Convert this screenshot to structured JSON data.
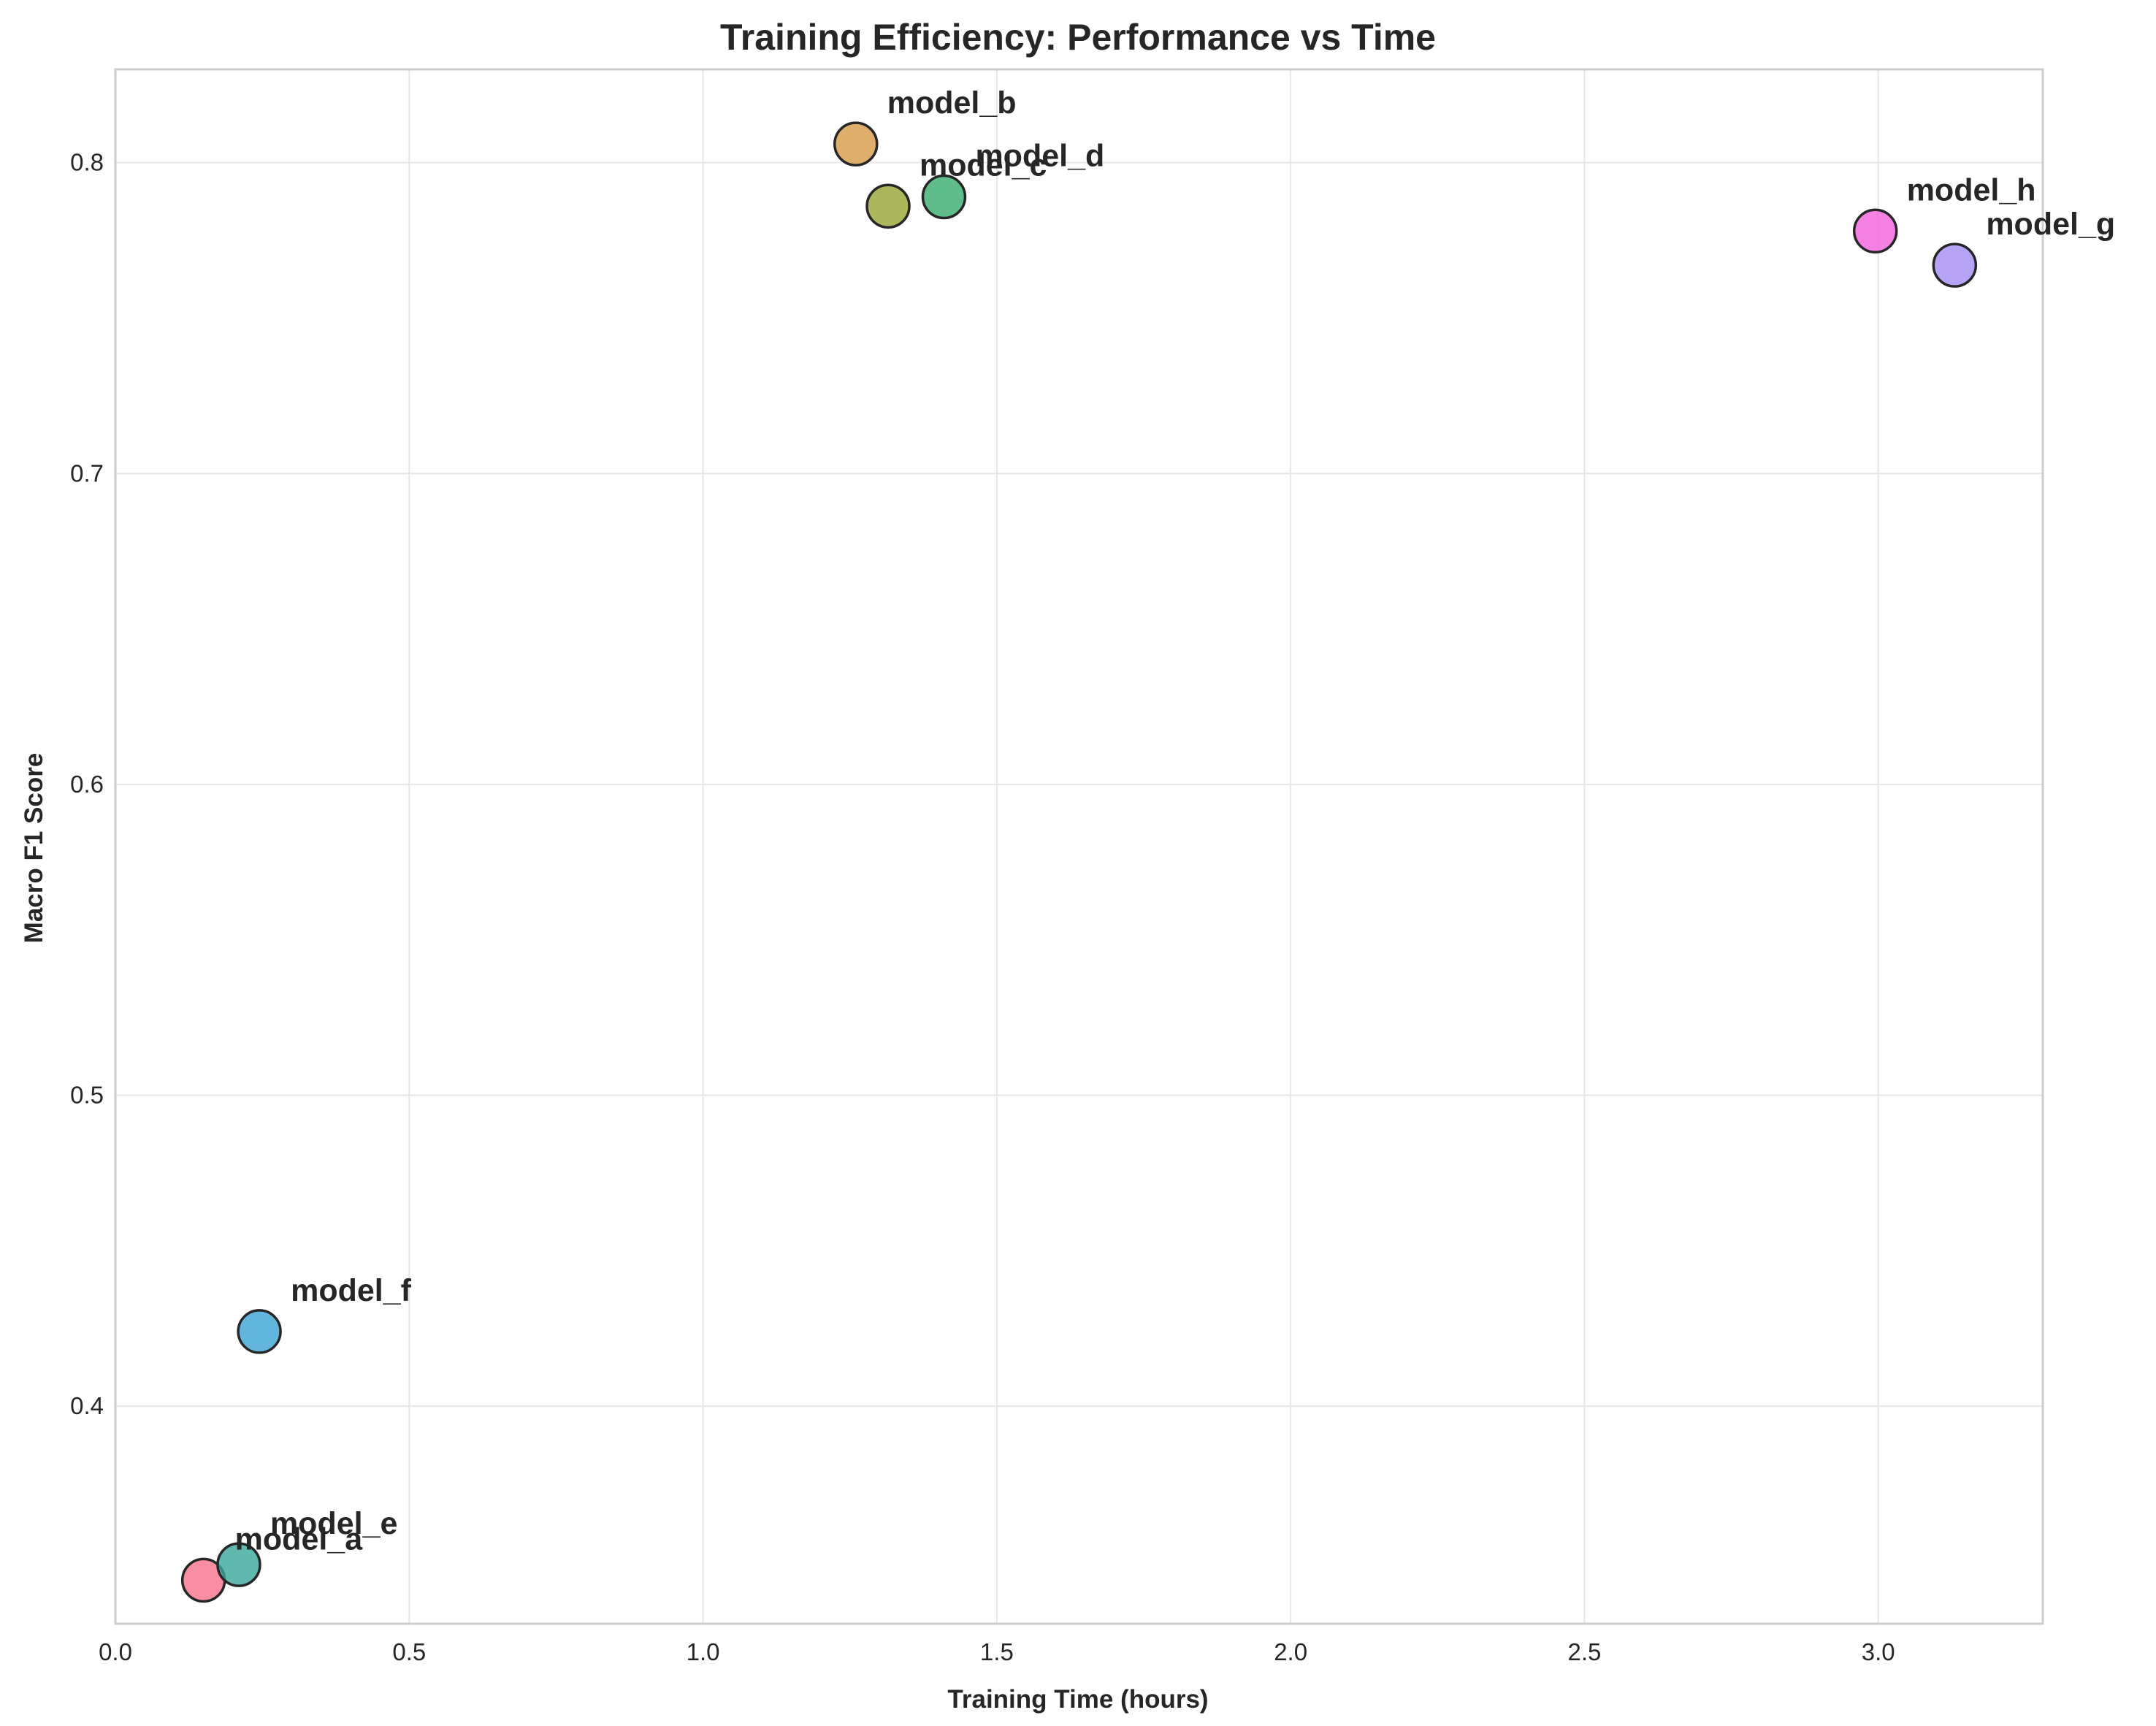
{
  "chart_data": {
    "type": "scatter",
    "title": "Training Efficiency: Performance vs Time",
    "xlabel": "Training Time (hours)",
    "ylabel": "Macro F1 Score",
    "xlim": [
      0.0,
      3.28
    ],
    "ylim": [
      0.33,
      0.83
    ],
    "xticks": [
      0.0,
      0.5,
      1.0,
      1.5,
      2.0,
      2.5,
      3.0
    ],
    "xtick_labels": [
      "0.0",
      "0.5",
      "1.0",
      "1.5",
      "2.0",
      "2.5",
      "3.0"
    ],
    "yticks": [
      0.4,
      0.5,
      0.6,
      0.7,
      0.8
    ],
    "ytick_labels": [
      "0.4",
      "0.5",
      "0.6",
      "0.7",
      "0.8"
    ],
    "grid": true,
    "points": [
      {
        "label": "model_a",
        "x": 0.15,
        "y": 0.344,
        "color": "#f77189"
      },
      {
        "label": "model_b",
        "x": 1.26,
        "y": 0.806,
        "color": "#d69a45"
      },
      {
        "label": "model_c",
        "x": 1.315,
        "y": 0.786,
        "color": "#97a431"
      },
      {
        "label": "model_d",
        "x": 1.41,
        "y": 0.789,
        "color": "#36ad6a"
      },
      {
        "label": "model_e",
        "x": 0.21,
        "y": 0.349,
        "color": "#38a89d"
      },
      {
        "label": "model_f",
        "x": 0.245,
        "y": 0.424,
        "color": "#3ba3d3"
      },
      {
        "label": "model_g",
        "x": 3.13,
        "y": 0.767,
        "color": "#a48cf4"
      },
      {
        "label": "model_h",
        "x": 2.995,
        "y": 0.778,
        "color": "#f461dd"
      }
    ]
  }
}
